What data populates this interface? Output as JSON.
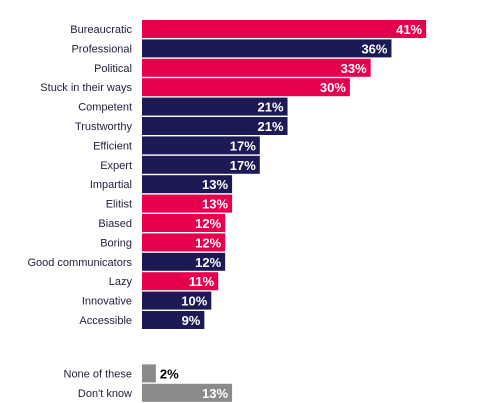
{
  "chart_data": {
    "type": "bar",
    "orientation": "horizontal",
    "colors": {
      "negative": "#e6004c",
      "positive": "#1c1a54",
      "other": "#8a8a8a",
      "label_inside": "#ffffff",
      "label_outside": "#000000"
    },
    "categories": [
      "Bureaucratic",
      "Professional",
      "Political",
      "Stuck in their ways",
      "Competent",
      "Trustworthy",
      "Efficient",
      "Expert",
      "Impartial",
      "Elitist",
      "Biased",
      "Boring",
      "Good communicators",
      "Lazy",
      "Innovative",
      "Accessible",
      "None of these",
      "Don't know"
    ],
    "values": [
      41,
      36,
      33,
      30,
      21,
      21,
      17,
      17,
      13,
      13,
      12,
      12,
      12,
      11,
      10,
      9,
      2,
      13
    ],
    "value_labels": [
      "41%",
      "36%",
      "33%",
      "30%",
      "21%",
      "21%",
      "17%",
      "17%",
      "13%",
      "13%",
      "12%",
      "12%",
      "12%",
      "11%",
      "10%",
      "9%",
      "2%",
      "13%"
    ],
    "bar_color_keys": [
      "negative",
      "positive",
      "negative",
      "negative",
      "positive",
      "positive",
      "positive",
      "positive",
      "positive",
      "negative",
      "negative",
      "negative",
      "positive",
      "negative",
      "positive",
      "positive",
      "other",
      "other"
    ],
    "gap_before_index": 16,
    "xlim": [
      0,
      41
    ]
  }
}
